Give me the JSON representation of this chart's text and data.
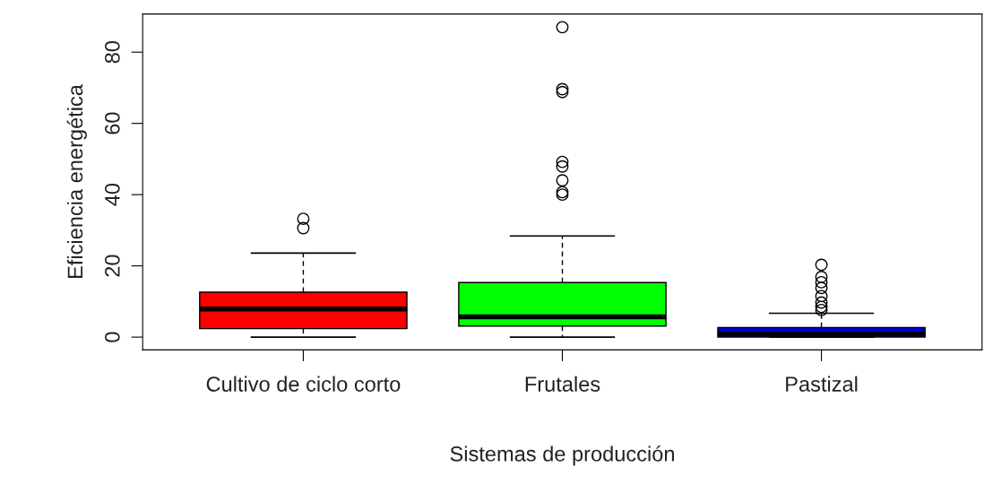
{
  "chart_data": {
    "type": "box",
    "xlabel": "Sistemas de producción",
    "ylabel": "Eficiencia energética",
    "categories": [
      "Cultivo de ciclo corto",
      "Frutales",
      "Pastizal"
    ],
    "colors": [
      "#ff0000",
      "#00ff00",
      "#0000c8"
    ],
    "boxes": [
      {
        "low": 0,
        "q1": 2.4,
        "median": 7.9,
        "q3": 12.6,
        "high": 23.6,
        "outliers": [
          30.6,
          33.2
        ]
      },
      {
        "low": 0,
        "q1": 3.1,
        "median": 5.7,
        "q3": 15.3,
        "high": 28.4,
        "outliers": [
          40.0,
          40.7,
          44.0,
          47.9,
          49.2,
          68.8,
          69.6,
          87.0
        ]
      },
      {
        "low": 0,
        "q1": 0,
        "median": 0.8,
        "q3": 2.7,
        "high": 6.7,
        "outliers": [
          7.6,
          8.5,
          9.7,
          11.5,
          13.8,
          15.4,
          16.9,
          20.3
        ]
      }
    ],
    "ylim": [
      -3.6,
      90.7
    ],
    "yticks": [
      0,
      20,
      40,
      60,
      80
    ],
    "grid": false,
    "legend": false
  }
}
